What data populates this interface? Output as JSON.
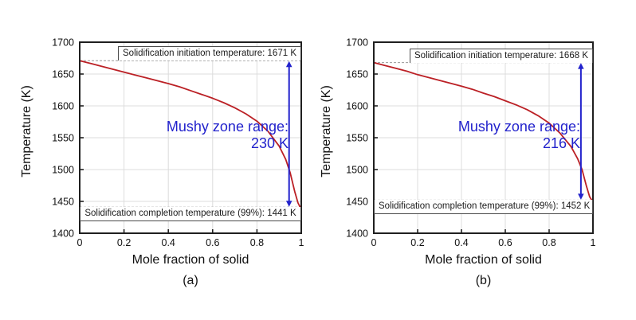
{
  "figure": {
    "background": "#ffffff",
    "description_left": "Solidification curve (a)",
    "description_right": "Solidification curve (b)"
  },
  "colors": {
    "curve_red": "#bb2025",
    "annotation_blue": "#2222cc",
    "grid_gray": "#dcdcdc",
    "dashed_gray": "#999999",
    "frame_black": "#1f1f1f",
    "tick_text": "#111111"
  },
  "chart_data": [
    {
      "id": "a",
      "type": "line",
      "sublabel": "(a)",
      "xlabel": "Mole fraction of solid",
      "ylabel": "Temperature (K)",
      "xlim": [
        0,
        1
      ],
      "ylim": [
        1400,
        1700
      ],
      "grid": true,
      "legend": "none",
      "xticks": [
        0,
        0.2,
        0.4,
        0.6,
        0.8,
        1
      ],
      "xtick_labels": [
        "0",
        "0.2",
        "0.4",
        "0.6",
        "0.8",
        "1"
      ],
      "yticks": [
        1400,
        1450,
        1500,
        1550,
        1600,
        1650,
        1700
      ],
      "ytick_labels": [
        "1400",
        "1450",
        "1500",
        "1550",
        "1600",
        "1650",
        "1700"
      ],
      "series": [
        {
          "name": "solidification-curve",
          "color": "#bb2025",
          "x": [
            0,
            0.05,
            0.1,
            0.15,
            0.2,
            0.25,
            0.3,
            0.35,
            0.4,
            0.45,
            0.5,
            0.55,
            0.6,
            0.65,
            0.7,
            0.75,
            0.8,
            0.85,
            0.9,
            0.93,
            0.95,
            0.97,
            0.985,
            0.995
          ],
          "temperature_K": [
            1671,
            1666.5,
            1662,
            1657.5,
            1653,
            1648.5,
            1644,
            1639.5,
            1635,
            1630,
            1624,
            1618,
            1612,
            1605,
            1597,
            1587.5,
            1576,
            1560,
            1537,
            1516,
            1495,
            1466,
            1448,
            1441
          ]
        }
      ],
      "annotations": {
        "initiation_label": "Solidification initiation temperature: 1671 K",
        "initiation_temp_K": 1671,
        "completion_label": "Solidification completion temperature (99%): 1441 K",
        "completion_temp_K": 1441,
        "mushy_zone_label": "Mushy zone range:",
        "mushy_zone_value": "230 K",
        "mushy_zone_range_K": 230,
        "arrow_x": 0.945
      }
    },
    {
      "id": "b",
      "type": "line",
      "sublabel": "(b)",
      "xlabel": "Mole fraction of solid",
      "ylabel": "Temperature (K)",
      "xlim": [
        0,
        1
      ],
      "ylim": [
        1400,
        1700
      ],
      "grid": true,
      "legend": "none",
      "xticks": [
        0,
        0.2,
        0.4,
        0.6,
        0.8,
        1
      ],
      "xtick_labels": [
        "0",
        "0.2",
        "0.4",
        "0.6",
        "0.8",
        "1"
      ],
      "yticks": [
        1400,
        1450,
        1500,
        1550,
        1600,
        1650,
        1700
      ],
      "ytick_labels": [
        "1400",
        "1450",
        "1500",
        "1550",
        "1600",
        "1650",
        "1700"
      ],
      "series": [
        {
          "name": "solidification-curve",
          "color": "#bb2025",
          "x": [
            0,
            0.05,
            0.1,
            0.15,
            0.2,
            0.25,
            0.3,
            0.35,
            0.4,
            0.45,
            0.5,
            0.55,
            0.6,
            0.65,
            0.7,
            0.75,
            0.8,
            0.85,
            0.9,
            0.93,
            0.95,
            0.97,
            0.985,
            0.995
          ],
          "temperature_K": [
            1668,
            1663.5,
            1659,
            1654.5,
            1649,
            1644.5,
            1640,
            1635.5,
            1631,
            1626,
            1620,
            1614.5,
            1608,
            1601.5,
            1594,
            1584.5,
            1573,
            1557,
            1536,
            1517,
            1500,
            1474,
            1457,
            1452
          ]
        }
      ],
      "annotations": {
        "initiation_label": "Solidification initiation temperature: 1668 K",
        "initiation_temp_K": 1668,
        "completion_label": "Solidification completion temperature (99%): 1452 K",
        "completion_temp_K": 1452,
        "mushy_zone_label": "Mushy zone range:",
        "mushy_zone_value": "216 K",
        "mushy_zone_range_K": 216,
        "arrow_x": 0.945
      }
    }
  ]
}
